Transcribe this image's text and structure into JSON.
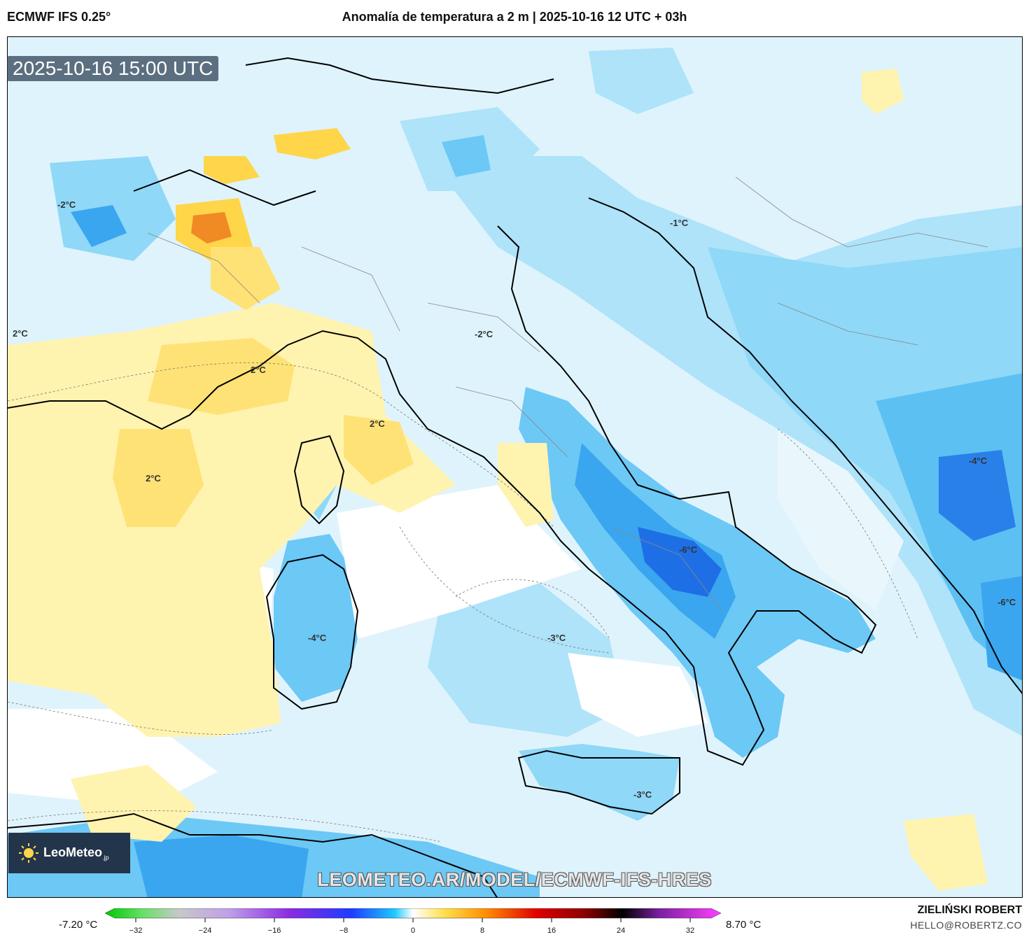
{
  "header": {
    "model": "ECMWF IFS 0.25°",
    "title": "Anomalía de temperatura a 2 m | 2025-10-16 12 UTC + 03h"
  },
  "map": {
    "timestamp": "2025-10-16 15:00 UTC",
    "watermark": "LEOMETEO.AR/MODEL/ECMWF-IFS-HRES",
    "labels": [
      "-2°C",
      "2°C",
      "2°C",
      "2°C",
      "2°C",
      "-2°C",
      "-1°C",
      "-4°C",
      "-3°C",
      "-6°C",
      "-4°C",
      "-3°C",
      "-6°C"
    ]
  },
  "logo": {
    "name": "LeoMeteo",
    "suffix": ".jp"
  },
  "colorbar": {
    "min_label": "-7.20 °C",
    "max_label": "8.70 °C",
    "ticks": [
      "−32",
      "−24",
      "−16",
      "−8",
      "0",
      "8",
      "16",
      "24",
      "32"
    ]
  },
  "footer": {
    "author": "ZIELIŃSKI ROBERT",
    "email": "HELLO@ROBERTZ.CO"
  },
  "colors": {
    "warm_light": "#fff3b0",
    "warm": "#ffd54a",
    "hot": "#f08a24",
    "cool_light": "#d8f1fc",
    "cool": "#8fd8f7",
    "cold": "#3aa6f0",
    "colder": "#1e6fe6"
  }
}
